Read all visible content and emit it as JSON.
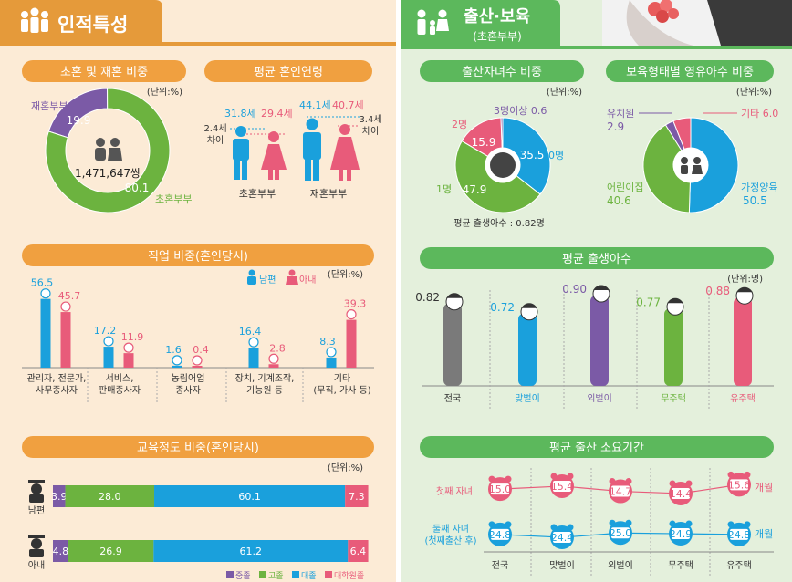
{
  "colors": {
    "green": "#6cb33f",
    "blue": "#1aa0dc",
    "purple": "#7b5aa6",
    "pink": "#e85b7a",
    "orange": "#f0a040",
    "orange_header": "#e59a3a",
    "green_header": "#5cb85c",
    "gray": "#7a7a7a",
    "left_bg": "#fcebd6",
    "right_bg": "#e4f0dc"
  },
  "left_panel": {
    "title": "인적특성",
    "title_icon": "family-icon",
    "marriage": {
      "title": "초혼 및 재혼 비중",
      "unit": "(단위:%)",
      "center_value": "1,471,647쌍",
      "remarried_label": "재혼부부",
      "remarried_value": "19.9",
      "first_label": "초혼부부",
      "first_value": "80.1"
    },
    "age": {
      "title": "평균 혼인연령",
      "first": {
        "label": "초혼부부",
        "husband": "31.8세",
        "wife": "29.4세",
        "diff": "2.4세\n차이"
      },
      "remarried": {
        "label": "재혼부부",
        "husband": "44.1세",
        "wife": "40.7세",
        "diff": "3.4세\n차이"
      }
    },
    "occupation": {
      "title": "직업 비중(혼인당시)",
      "unit": "(단위:%)",
      "legend_husband": "남편",
      "legend_wife": "아내"
    },
    "education": {
      "title": "교육정도 비중(혼인당시)",
      "unit": "(단위:%)",
      "legend": [
        "중졸",
        "고졸",
        "대졸",
        "대학원졸"
      ]
    }
  },
  "right_panel": {
    "title": "출산·보육",
    "subtitle": "(초혼부부)",
    "children_count": {
      "title": "출산자녀수 비중",
      "unit": "(단위:%)",
      "labels": {
        "zero": "0명",
        "one": "1명",
        "two": "2명",
        "three": "3명이상"
      },
      "values": {
        "zero": "35.5",
        "one": "47.9",
        "two": "15.9",
        "three": "0.6"
      },
      "avg_note": "평균 출생아수 : 0.82명"
    },
    "childcare": {
      "title": "보육형태별 영유아수 비중",
      "unit": "(단위:%)",
      "labels": {
        "kinder": "유치원",
        "daycare": "어린이집",
        "home": "가정양육",
        "other": "기타"
      },
      "values": {
        "kinder": "2.9",
        "daycare": "40.6",
        "home": "50.5",
        "other": "6.0"
      }
    },
    "avg_births": {
      "title": "평균 출생아수",
      "unit": "(단위:명)"
    },
    "birth_period": {
      "title": "평균 출산 소요기간",
      "row1_label": "첫째 자녀",
      "row2_label": "둘째 자녀\n(첫째출산 후)",
      "unit": "개월"
    }
  },
  "chart_data": [
    {
      "type": "pie",
      "title": "초혼 및 재혼 비중",
      "categories": [
        "초혼부부",
        "재혼부부"
      ],
      "values": [
        80.1,
        19.9
      ],
      "colors": [
        "#6cb33f",
        "#7b5aa6"
      ]
    },
    {
      "type": "bar",
      "title": "평균 혼인연령",
      "categories": [
        "초혼부부",
        "재혼부부"
      ],
      "series": [
        {
          "name": "남편",
          "values": [
            31.8,
            44.1
          ]
        },
        {
          "name": "아내",
          "values": [
            29.4,
            40.7
          ]
        }
      ]
    },
    {
      "type": "bar",
      "title": "직업 비중(혼인당시)",
      "categories": [
        "관리자, 전문가,\n사무종사자",
        "서비스,\n판매종사자",
        "농림어업\n종사자",
        "장치, 기계조작,\n기능원 등",
        "기타\n(무직, 가사 등)"
      ],
      "series": [
        {
          "name": "남편",
          "values": [
            56.5,
            17.2,
            1.6,
            16.4,
            8.3
          ]
        },
        {
          "name": "아내",
          "values": [
            45.7,
            11.9,
            0.4,
            2.8,
            39.3
          ]
        }
      ],
      "ylim": [
        0,
        60
      ]
    },
    {
      "type": "bar",
      "title": "교육정도 비중(혼인당시)",
      "stacked": true,
      "horizontal": true,
      "categories": [
        "남편",
        "아내"
      ],
      "series": [
        {
          "name": "중졸",
          "values": [
            3.9,
            4.8
          ],
          "color": "#7b5aa6"
        },
        {
          "name": "고졸",
          "values": [
            28.0,
            26.9
          ],
          "color": "#6cb33f"
        },
        {
          "name": "대졸",
          "values": [
            60.1,
            61.2
          ],
          "color": "#1aa0dc"
        },
        {
          "name": "대학원졸",
          "values": [
            7.3,
            6.4
          ],
          "color": "#e85b7a"
        }
      ]
    },
    {
      "type": "pie",
      "title": "출산자녀수 비중",
      "categories": [
        "0명",
        "1명",
        "2명",
        "3명이상"
      ],
      "values": [
        35.5,
        47.9,
        15.9,
        0.6
      ],
      "colors": [
        "#1aa0dc",
        "#6cb33f",
        "#e85b7a",
        "#7b5aa6"
      ]
    },
    {
      "type": "pie",
      "title": "보육형태별 영유아수 비중",
      "categories": [
        "가정양육",
        "어린이집",
        "유치원",
        "기타"
      ],
      "values": [
        50.5,
        40.6,
        2.9,
        6.0
      ],
      "colors": [
        "#1aa0dc",
        "#6cb33f",
        "#7b5aa6",
        "#e85b7a"
      ]
    },
    {
      "type": "bar",
      "title": "평균 출생아수",
      "categories": [
        "전국",
        "맞벌이",
        "외벌이",
        "무주택",
        "유주택"
      ],
      "values": [
        0.82,
        0.72,
        0.9,
        0.77,
        0.88
      ],
      "colors": [
        "#7a7a7a",
        "#1aa0dc",
        "#7b5aa6",
        "#6cb33f",
        "#e85b7a"
      ]
    },
    {
      "type": "line",
      "title": "평균 출산 소요기간",
      "categories": [
        "전국",
        "맞벌이",
        "외벌이",
        "무주택",
        "유주택"
      ],
      "series": [
        {
          "name": "첫째 자녀",
          "values": [
            15.0,
            15.4,
            14.7,
            14.4,
            15.6
          ],
          "color": "#e85b7a"
        },
        {
          "name": "둘째 자녀\n(첫째출산 후)",
          "values": [
            24.8,
            24.4,
            25.0,
            24.9,
            24.8
          ],
          "color": "#1aa0dc"
        }
      ]
    }
  ]
}
